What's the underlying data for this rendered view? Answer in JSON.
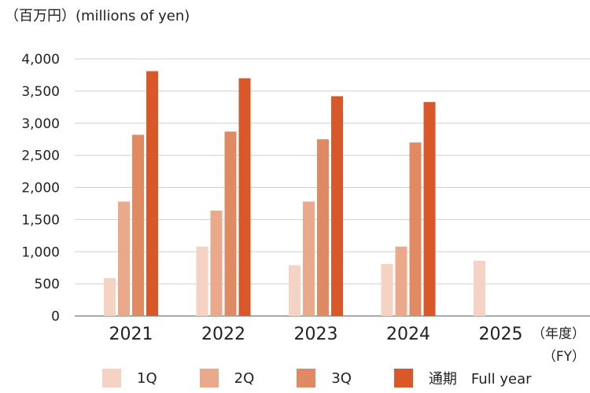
{
  "header": {
    "unit_label": "（百万円）(millions of yen)"
  },
  "axis": {
    "fy_label_1": "（年度）",
    "fy_label_2": "（FY）"
  },
  "chart_data": {
    "type": "bar",
    "categories": [
      "2021",
      "2022",
      "2023",
      "2024",
      "2025"
    ],
    "ylim": [
      0,
      4000
    ],
    "yticks": [
      0,
      500,
      1000,
      1500,
      2000,
      2500,
      3000,
      3500,
      4000
    ],
    "ytick_labels": [
      "0",
      "500",
      "1,000",
      "1,500",
      "2,000",
      "2,500",
      "3,000",
      "3,500",
      "4,000"
    ],
    "grid": true,
    "legend_position": "bottom",
    "series": [
      {
        "name": "1Q",
        "color": "#f5d3c4",
        "values": [
          590,
          1080,
          790,
          810,
          860
        ]
      },
      {
        "name": "2Q",
        "color": "#eba98b",
        "values": [
          1780,
          1640,
          1780,
          1080,
          null
        ]
      },
      {
        "name": "3Q",
        "color": "#e08a63",
        "values": [
          2820,
          2870,
          2750,
          2700,
          null
        ]
      },
      {
        "name": "通期　Full year",
        "color": "#d9582a",
        "values": [
          3810,
          3700,
          3420,
          3330,
          null
        ]
      }
    ]
  }
}
